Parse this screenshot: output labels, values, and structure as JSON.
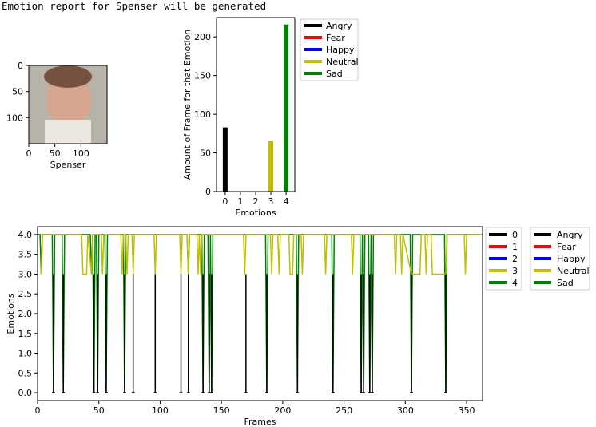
{
  "header": {
    "text": "Emotion report for Spenser will be generated"
  },
  "colors": {
    "Angry": "#000000",
    "Fear": "#ff0000",
    "Happy": "#0000ff",
    "Neutral": "#bfbf00",
    "Sad": "#008000"
  },
  "chart_data": [
    {
      "type": "image",
      "subject_label": "Spenser",
      "xlabel": "Spenser",
      "xticks": [
        "0",
        "50",
        "100"
      ],
      "yticks": [
        "0",
        "50",
        "100"
      ],
      "xlim": [
        0,
        150
      ],
      "ylim": [
        0,
        150
      ]
    },
    {
      "type": "bar",
      "xlabel": "Emotions",
      "ylabel": "Amount of Frame for that Emotion",
      "categories": [
        "0",
        "1",
        "2",
        "3",
        "4"
      ],
      "values": [
        83,
        0,
        0,
        65,
        216
      ],
      "bar_colors": [
        "Angry",
        "Fear",
        "Happy",
        "Neutral",
        "Sad"
      ],
      "ylim": [
        0,
        225
      ],
      "yticks": [
        "0",
        "50",
        "100",
        "150",
        "200"
      ],
      "legend": {
        "placement": "outside-right",
        "entries": [
          "Angry",
          "Fear",
          "Happy",
          "Neutral",
          "Sad"
        ]
      }
    },
    {
      "type": "line",
      "xlabel": "Frames",
      "ylabel": "Emotions",
      "xlim": [
        0,
        363
      ],
      "ylim": [
        -0.2,
        4.2
      ],
      "xticks": [
        "0",
        "50",
        "100",
        "150",
        "200",
        "250",
        "300",
        "350"
      ],
      "yticks": [
        "0.0",
        "0.5",
        "1.0",
        "1.5",
        "2.0",
        "2.5",
        "3.0",
        "3.5",
        "4.0"
      ],
      "legend_numeric": {
        "placement": "outside-right",
        "entries": [
          "0",
          "1",
          "2",
          "3",
          "4"
        ]
      },
      "legend_named": {
        "placement": "outside-right",
        "entries": [
          "Angry",
          "Fear",
          "Happy",
          "Neutral",
          "Sad"
        ]
      },
      "series": [
        {
          "color_key": "Sad",
          "points": [
            [
              0,
              4
            ],
            [
              2,
              4
            ],
            [
              3,
              3
            ],
            [
              4,
              4
            ],
            [
              12,
              4
            ],
            [
              13,
              0
            ],
            [
              14,
              4
            ],
            [
              20,
              4
            ],
            [
              21,
              0
            ],
            [
              22,
              4
            ],
            [
              43,
              4
            ],
            [
              44,
              3
            ],
            [
              45,
              4
            ],
            [
              46,
              0
            ],
            [
              47,
              4
            ],
            [
              48,
              4
            ],
            [
              49,
              0
            ],
            [
              50,
              4
            ],
            [
              55,
              4
            ],
            [
              56,
              0
            ],
            [
              57,
              4
            ],
            [
              70,
              4
            ],
            [
              71,
              0
            ],
            [
              72,
              4
            ],
            [
              122,
              4
            ],
            [
              123,
              3
            ],
            [
              124,
              4
            ],
            [
              134,
              4
            ],
            [
              135,
              0
            ],
            [
              136,
              4
            ],
            [
              139,
              4
            ],
            [
              140,
              0
            ],
            [
              141,
              4
            ],
            [
              142,
              0
            ],
            [
              143,
              4
            ],
            [
              186,
              4
            ],
            [
              187,
              0
            ],
            [
              188,
              4
            ],
            [
              211,
              4
            ],
            [
              212,
              0
            ],
            [
              213,
              4
            ],
            [
              240,
              4
            ],
            [
              241,
              0
            ],
            [
              242,
              4
            ],
            [
              263,
              4
            ],
            [
              264,
              0
            ],
            [
              265,
              4
            ],
            [
              266,
              0
            ],
            [
              267,
              4
            ],
            [
              270,
              4
            ],
            [
              271,
              0
            ],
            [
              272,
              4
            ],
            [
              273,
              0
            ],
            [
              274,
              4
            ],
            [
              304,
              4
            ],
            [
              305,
              0
            ],
            [
              306,
              4
            ],
            [
              332,
              4
            ],
            [
              333,
              0
            ],
            [
              334,
              4
            ],
            [
              363,
              4
            ]
          ]
        },
        {
          "color_key": "Neutral",
          "points": [
            [
              3,
              3
            ],
            [
              4,
              4
            ],
            [
              36,
              4
            ],
            [
              37,
              3
            ],
            [
              40,
              3
            ],
            [
              41,
              4
            ],
            [
              44,
              3
            ],
            [
              45,
              4
            ],
            [
              52,
              4
            ],
            [
              53,
              3
            ],
            [
              54,
              4
            ],
            [
              68,
              4
            ],
            [
              69,
              3
            ],
            [
              70,
              4
            ],
            [
              72,
              4
            ],
            [
              73,
              3
            ],
            [
              74,
              4
            ],
            [
              77,
              4
            ],
            [
              78,
              3
            ],
            [
              79,
              4
            ],
            [
              95,
              4
            ],
            [
              96,
              3
            ],
            [
              97,
              4
            ],
            [
              116,
              4
            ],
            [
              117,
              3
            ],
            [
              118,
              4
            ],
            [
              122,
              4
            ],
            [
              123,
              3
            ],
            [
              124,
              4
            ],
            [
              130,
              4
            ],
            [
              131,
              3
            ],
            [
              132,
              4
            ],
            [
              133,
              3
            ],
            [
              134,
              4
            ],
            [
              168,
              4
            ],
            [
              169,
              3
            ],
            [
              170,
              4
            ],
            [
              186,
              4
            ],
            [
              187,
              4
            ],
            [
              188,
              4
            ],
            [
              190,
              4
            ],
            [
              191,
              3
            ],
            [
              192,
              4
            ],
            [
              196,
              4
            ],
            [
              197,
              3
            ],
            [
              198,
              4
            ],
            [
              205,
              4
            ],
            [
              206,
              3
            ],
            [
              208,
              3
            ],
            [
              209,
              4
            ],
            [
              215,
              4
            ],
            [
              216,
              3
            ],
            [
              217,
              4
            ],
            [
              234,
              4
            ],
            [
              235,
              3
            ],
            [
              236,
              4
            ],
            [
              256,
              4
            ],
            [
              257,
              3
            ],
            [
              258,
              4
            ],
            [
              291,
              4
            ],
            [
              292,
              3
            ],
            [
              293,
              4
            ],
            [
              296,
              4
            ],
            [
              297,
              3
            ],
            [
              298,
              4
            ],
            [
              305,
              3
            ],
            [
              312,
              3
            ],
            [
              313,
              4
            ],
            [
              316,
              4
            ],
            [
              317,
              3
            ],
            [
              318,
              4
            ],
            [
              321,
              4
            ],
            [
              322,
              3
            ],
            [
              333,
              3
            ],
            [
              334,
              4
            ],
            [
              348,
              4
            ],
            [
              349,
              3
            ],
            [
              350,
              4
            ],
            [
              363,
              4
            ]
          ]
        },
        {
          "color_key": "Angry",
          "points": [
            [
              13,
              0
            ],
            [
              21,
              0
            ],
            [
              46,
              0
            ],
            [
              49,
              0
            ],
            [
              56,
              0
            ],
            [
              71,
              0
            ],
            [
              78,
              0
            ],
            [
              96,
              0
            ],
            [
              117,
              0
            ],
            [
              123,
              0
            ],
            [
              135,
              0
            ],
            [
              140,
              0
            ],
            [
              142,
              0
            ],
            [
              170,
              0
            ],
            [
              187,
              0
            ],
            [
              212,
              0
            ],
            [
              241,
              0
            ],
            [
              264,
              0
            ],
            [
              266,
              0
            ],
            [
              271,
              0
            ],
            [
              273,
              0
            ],
            [
              305,
              0
            ],
            [
              333,
              0
            ]
          ]
        }
      ]
    }
  ]
}
